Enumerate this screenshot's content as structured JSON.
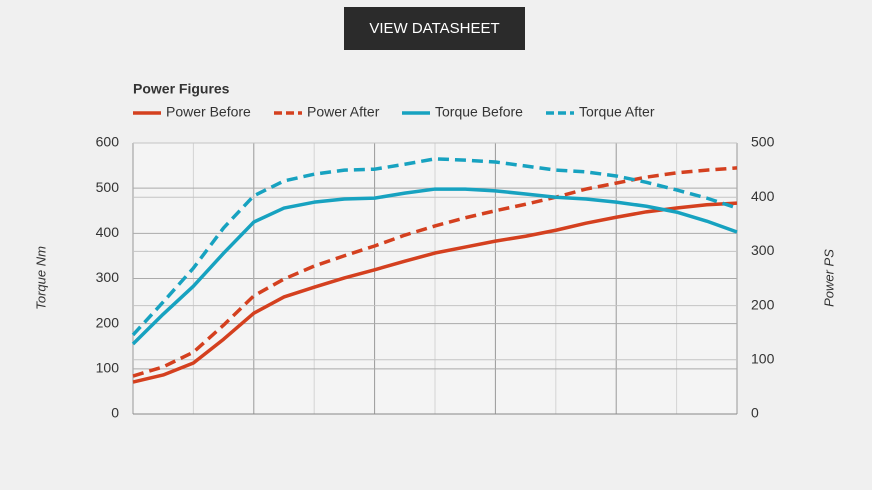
{
  "button": {
    "label": "VIEW DATASHEET"
  },
  "chart_data": {
    "type": "line",
    "legend_title": "Power Figures",
    "y_label": "Torque Nm",
    "y2_label": "Power PS",
    "categories": [
      null,
      null,
      null,
      null,
      null,
      null,
      null,
      null,
      null,
      null,
      null,
      null,
      null,
      null,
      null,
      null,
      null,
      null,
      null,
      null,
      null
    ],
    "ylim": [
      0,
      600
    ],
    "yticks": [
      0,
      100,
      200,
      300,
      400,
      500,
      600
    ],
    "y2lim": [
      0,
      500
    ],
    "y2ticks": [
      0,
      100,
      200,
      300,
      400,
      500
    ],
    "grid": true,
    "series": [
      {
        "name": "Power Before",
        "color": "#d4401f",
        "dashed": false,
        "axis": "y2",
        "values": [
          59,
          72,
          94,
          138,
          186,
          216,
          234,
          251,
          266,
          282,
          297,
          308,
          319,
          328,
          339,
          352,
          363,
          373,
          380,
          386,
          389
        ]
      },
      {
        "name": "Power After",
        "color": "#d4401f",
        "dashed": true,
        "axis": "y2",
        "values": [
          70,
          87,
          114,
          164,
          218,
          249,
          273,
          292,
          310,
          330,
          347,
          362,
          375,
          387,
          400,
          415,
          426,
          437,
          445,
          450,
          454
        ]
      },
      {
        "name": "Torque Before",
        "color": "#17a2c0",
        "dashed": false,
        "values": [
          155,
          221,
          283,
          356,
          425,
          456,
          469,
          476,
          478,
          489,
          498,
          498,
          494,
          487,
          480,
          476,
          469,
          460,
          447,
          427,
          403
        ]
      },
      {
        "name": "Torque After",
        "color": "#17a2c0",
        "dashed": true,
        "values": [
          175,
          248,
          323,
          412,
          483,
          516,
          531,
          540,
          542,
          553,
          565,
          562,
          558,
          549,
          540,
          536,
          527,
          513,
          496,
          478,
          456
        ]
      }
    ]
  }
}
